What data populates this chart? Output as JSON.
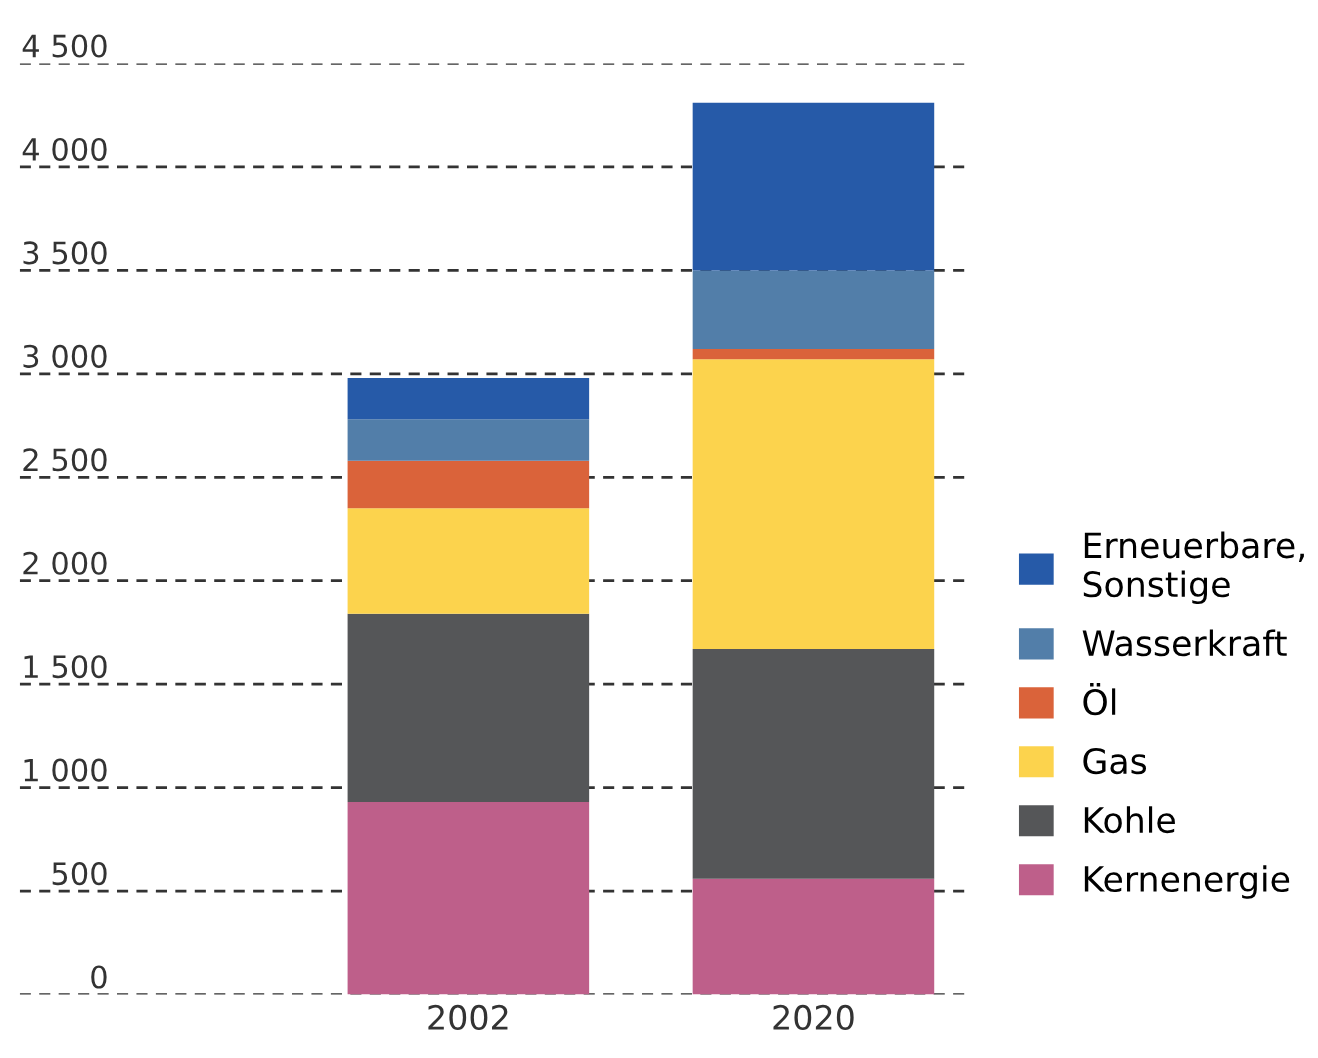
{
  "chart_data": {
    "type": "bar",
    "stacked": true,
    "categories": [
      "2002",
      "2020"
    ],
    "series": [
      {
        "name": "Kernenergie",
        "color": "#be5f8a",
        "values": [
          930,
          560
        ]
      },
      {
        "name": "Kohle",
        "color": "#555658",
        "values": [
          910,
          1110
        ]
      },
      {
        "name": "Gas",
        "color": "#fcd34d",
        "values": [
          510,
          1400
        ]
      },
      {
        "name": "Öl",
        "color": "#da633a",
        "values": [
          230,
          50
        ]
      },
      {
        "name": "Wasserkraft",
        "color": "#527ea9",
        "values": [
          200,
          380
        ]
      },
      {
        "name": "Erneuerbare,\nSonstige",
        "color": "#265aa8",
        "values": [
          200,
          810
        ]
      }
    ],
    "ylim": [
      0,
      4500
    ],
    "yticks": [
      0,
      500,
      {
        "value": 1000,
        "label": "1 000"
      },
      {
        "value": 1500,
        "label": "1 500"
      },
      {
        "value": 2000,
        "label": "2 000"
      },
      {
        "value": 2500,
        "label": "2 500"
      },
      {
        "value": 3000,
        "label": "3 000"
      },
      {
        "value": 3500,
        "label": "3 500"
      },
      {
        "value": 4000,
        "label": "4 000"
      },
      {
        "value": 4500,
        "label": "4 500"
      }
    ],
    "grid": "y",
    "legend": "right"
  }
}
